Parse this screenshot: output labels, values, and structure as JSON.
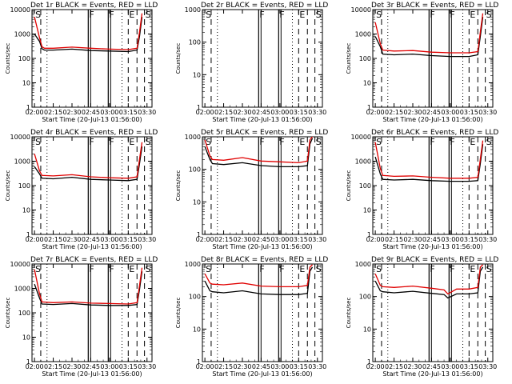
{
  "page": {
    "x_axis_label": "Start Time (20-Jul-13 01:56:00)",
    "y_axis_label": "Counts/sec"
  },
  "chart_data": [
    {
      "type": "line",
      "title": "Det 1r BLACK = Events, RED = LLD",
      "ylim": [
        1,
        10000
      ],
      "yscale": "log",
      "xlim": [
        "01:58",
        "03:34"
      ],
      "x_ticks": [
        "02:00",
        "02:15",
        "02:30",
        "02:45",
        "03:00",
        "03:15",
        "03:30"
      ],
      "y_ticks": [
        "1",
        "10",
        "100",
        "1000",
        "10000"
      ],
      "markers": [
        {
          "label": "S",
          "time": "02:00"
        },
        {
          "label": "F",
          "time": "02:43"
        },
        {
          "label": "F",
          "time": "02:59"
        },
        {
          "label": "E",
          "time": "03:15"
        },
        {
          "label": "S",
          "time": "03:28"
        }
      ],
      "series": [
        {
          "name": "Events",
          "color": "#000000",
          "x": [
            "02:00",
            "02:04",
            "02:06",
            "02:08",
            "02:15",
            "02:30",
            "02:45",
            "03:00",
            "03:15",
            "03:22",
            "03:24",
            "03:26"
          ],
          "values": [
            1000,
            500,
            250,
            220,
            220,
            240,
            210,
            200,
            190,
            220,
            800,
            5000
          ]
        },
        {
          "name": "LLD",
          "color": "#e00000",
          "x": [
            "02:00",
            "02:04",
            "02:06",
            "02:08",
            "02:15",
            "02:30",
            "02:45",
            "03:00",
            "03:15",
            "03:22",
            "03:24",
            "03:26"
          ],
          "values": [
            5000,
            700,
            300,
            260,
            260,
            290,
            260,
            240,
            230,
            260,
            1200,
            7000
          ]
        }
      ]
    },
    {
      "type": "line",
      "title": "Det 2r BLACK = Events, RED = LLD",
      "ylim": [
        1,
        1000
      ],
      "yscale": "log",
      "xlim": [
        "01:58",
        "03:34"
      ],
      "x_ticks": [
        "02:00",
        "02:15",
        "02:30",
        "02:45",
        "03:00",
        "03:15",
        "03:30"
      ],
      "y_ticks": [
        "1",
        "10",
        "100",
        "1000"
      ],
      "markers": [
        {
          "label": "S",
          "time": "02:00"
        },
        {
          "label": "F",
          "time": "02:43"
        },
        {
          "label": "F",
          "time": "02:59"
        },
        {
          "label": "E",
          "time": "03:15"
        },
        {
          "label": "S",
          "time": "03:28"
        }
      ],
      "series": []
    },
    {
      "type": "line",
      "title": "Det 3r BLACK = Events, RED = LLD",
      "ylim": [
        1,
        10000
      ],
      "yscale": "log",
      "xlim": [
        "01:58",
        "03:34"
      ],
      "x_ticks": [
        "02:00",
        "02:15",
        "02:30",
        "02:45",
        "03:00",
        "03:15",
        "03:30"
      ],
      "y_ticks": [
        "1",
        "10",
        "100",
        "1000",
        "10000"
      ],
      "markers": [
        {
          "label": "S",
          "time": "02:00"
        },
        {
          "label": "F",
          "time": "02:43"
        },
        {
          "label": "F",
          "time": "02:59"
        },
        {
          "label": "E",
          "time": "03:15"
        },
        {
          "label": "S",
          "time": "03:28"
        }
      ],
      "series": [
        {
          "name": "Events",
          "color": "#000000",
          "x": [
            "02:00",
            "02:04",
            "02:06",
            "02:15",
            "02:30",
            "02:45",
            "03:00",
            "03:15",
            "03:22",
            "03:24",
            "03:26"
          ],
          "values": [
            800,
            300,
            150,
            140,
            150,
            130,
            120,
            120,
            140,
            800,
            5000
          ]
        },
        {
          "name": "LLD",
          "color": "#e00000",
          "x": [
            "02:00",
            "02:04",
            "02:06",
            "02:15",
            "02:30",
            "02:45",
            "03:00",
            "03:15",
            "03:22",
            "03:24",
            "03:26"
          ],
          "values": [
            3000,
            400,
            220,
            200,
            210,
            180,
            170,
            170,
            190,
            1200,
            7000
          ]
        }
      ]
    },
    {
      "type": "line",
      "title": "Det 4r BLACK = Events, RED = LLD",
      "ylim": [
        1,
        10000
      ],
      "yscale": "log",
      "xlim": [
        "01:58",
        "03:34"
      ],
      "x_ticks": [
        "02:00",
        "02:15",
        "02:30",
        "02:45",
        "03:00",
        "03:15",
        "03:30"
      ],
      "y_ticks": [
        "1",
        "10",
        "100",
        "1000",
        "10000"
      ],
      "markers": [
        {
          "label": "S",
          "time": "02:00"
        },
        {
          "label": "F",
          "time": "02:43"
        },
        {
          "label": "F",
          "time": "02:59"
        },
        {
          "label": "E",
          "time": "03:15"
        },
        {
          "label": "S",
          "time": "03:28"
        }
      ],
      "series": [
        {
          "name": "Events",
          "color": "#000000",
          "x": [
            "02:00",
            "02:04",
            "02:06",
            "02:15",
            "02:30",
            "02:45",
            "03:00",
            "03:15",
            "03:22",
            "03:24",
            "03:26"
          ],
          "values": [
            600,
            300,
            200,
            190,
            220,
            180,
            170,
            160,
            180,
            800,
            4000
          ]
        },
        {
          "name": "LLD",
          "color": "#e00000",
          "x": [
            "02:00",
            "02:04",
            "02:06",
            "02:15",
            "02:30",
            "02:45",
            "03:00",
            "03:15",
            "03:22",
            "03:24",
            "03:26"
          ],
          "values": [
            2000,
            400,
            260,
            250,
            280,
            230,
            210,
            200,
            230,
            1200,
            6000
          ]
        }
      ]
    },
    {
      "type": "line",
      "title": "Det 5r BLACK = Events, RED = LLD",
      "ylim": [
        1,
        1000
      ],
      "yscale": "log",
      "xlim": [
        "01:58",
        "03:34"
      ],
      "x_ticks": [
        "02:00",
        "02:15",
        "02:30",
        "02:45",
        "03:00",
        "03:15",
        "03:30"
      ],
      "y_ticks": [
        "1",
        "10",
        "100",
        "1000"
      ],
      "markers": [
        {
          "label": "S",
          "time": "02:00"
        },
        {
          "label": "F",
          "time": "02:43"
        },
        {
          "label": "F",
          "time": "02:59"
        },
        {
          "label": "E",
          "time": "03:15"
        },
        {
          "label": "S",
          "time": "03:28"
        }
      ],
      "series": [
        {
          "name": "Events",
          "color": "#000000",
          "x": [
            "02:00",
            "02:04",
            "02:06",
            "02:15",
            "02:30",
            "02:45",
            "03:00",
            "03:15",
            "03:22",
            "03:24",
            "03:26"
          ],
          "values": [
            500,
            200,
            150,
            140,
            160,
            130,
            120,
            120,
            130,
            600,
            900
          ]
        },
        {
          "name": "LLD",
          "color": "#e00000",
          "x": [
            "02:00",
            "02:04",
            "02:06",
            "02:15",
            "02:30",
            "02:45",
            "03:00",
            "03:15",
            "03:22",
            "03:24",
            "03:26"
          ],
          "values": [
            800,
            260,
            200,
            190,
            230,
            180,
            170,
            160,
            180,
            800,
            1000
          ]
        }
      ]
    },
    {
      "type": "line",
      "title": "Det 6r BLACK = Events, RED = LLD",
      "ylim": [
        1,
        10000
      ],
      "yscale": "log",
      "xlim": [
        "01:58",
        "03:34"
      ],
      "x_ticks": [
        "02:00",
        "02:15",
        "02:30",
        "02:45",
        "03:00",
        "03:15",
        "03:30"
      ],
      "y_ticks": [
        "1",
        "10",
        "100",
        "1000",
        "10000"
      ],
      "markers": [
        {
          "label": "S",
          "time": "02:00"
        },
        {
          "label": "F",
          "time": "02:43"
        },
        {
          "label": "F",
          "time": "02:59"
        },
        {
          "label": "E",
          "time": "03:15"
        },
        {
          "label": "S",
          "time": "03:28"
        }
      ],
      "series": [
        {
          "name": "Events",
          "color": "#000000",
          "x": [
            "02:00",
            "02:04",
            "02:06",
            "02:15",
            "02:30",
            "02:45",
            "03:00",
            "03:15",
            "03:22",
            "03:24",
            "03:26"
          ],
          "values": [
            1500,
            300,
            180,
            170,
            180,
            160,
            150,
            150,
            160,
            800,
            5000
          ]
        },
        {
          "name": "LLD",
          "color": "#e00000",
          "x": [
            "02:00",
            "02:04",
            "02:06",
            "02:15",
            "02:30",
            "02:45",
            "03:00",
            "03:15",
            "03:22",
            "03:24",
            "03:26"
          ],
          "values": [
            6000,
            500,
            260,
            240,
            250,
            220,
            200,
            200,
            220,
            1200,
            7000
          ]
        }
      ]
    },
    {
      "type": "line",
      "title": "Det 7r BLACK = Events, RED = LLD",
      "ylim": [
        1,
        10000
      ],
      "yscale": "log",
      "xlim": [
        "01:58",
        "03:34"
      ],
      "x_ticks": [
        "02:00",
        "02:15",
        "02:30",
        "02:45",
        "03:00",
        "03:15",
        "03:30"
      ],
      "y_ticks": [
        "1",
        "10",
        "100",
        "1000",
        "10000"
      ],
      "markers": [
        {
          "label": "S",
          "time": "02:00"
        },
        {
          "label": "F",
          "time": "02:43"
        },
        {
          "label": "F",
          "time": "02:59"
        },
        {
          "label": "E",
          "time": "03:15"
        },
        {
          "label": "S",
          "time": "03:28"
        }
      ],
      "series": [
        {
          "name": "Events",
          "color": "#000000",
          "x": [
            "02:00",
            "02:04",
            "02:06",
            "02:15",
            "02:30",
            "02:45",
            "03:00",
            "03:15",
            "03:22",
            "03:24",
            "03:26"
          ],
          "values": [
            1500,
            400,
            230,
            220,
            240,
            210,
            200,
            200,
            220,
            900,
            5000
          ]
        },
        {
          "name": "LLD",
          "color": "#e00000",
          "x": [
            "02:00",
            "02:04",
            "02:06",
            "02:15",
            "02:30",
            "02:45",
            "03:00",
            "03:15",
            "03:22",
            "03:24",
            "03:26"
          ],
          "values": [
            6000,
            600,
            280,
            260,
            280,
            250,
            240,
            230,
            260,
            1300,
            7000
          ]
        }
      ]
    },
    {
      "type": "line",
      "title": "Det 8r BLACK = Events, RED = LLD",
      "ylim": [
        1,
        1000
      ],
      "yscale": "log",
      "xlim": [
        "01:58",
        "03:34"
      ],
      "x_ticks": [
        "02:00",
        "02:15",
        "02:30",
        "02:45",
        "03:00",
        "03:15",
        "03:30"
      ],
      "y_ticks": [
        "1",
        "10",
        "100",
        "1000"
      ],
      "markers": [
        {
          "label": "S",
          "time": "02:00"
        },
        {
          "label": "F",
          "time": "02:43"
        },
        {
          "label": "F",
          "time": "02:59"
        },
        {
          "label": "E",
          "time": "03:15"
        },
        {
          "label": "S",
          "time": "03:28"
        }
      ],
      "series": [
        {
          "name": "Events",
          "color": "#000000",
          "x": [
            "02:00",
            "02:04",
            "02:06",
            "02:15",
            "02:30",
            "02:45",
            "03:00",
            "03:15",
            "03:22",
            "03:24",
            "03:26"
          ],
          "values": [
            300,
            150,
            140,
            130,
            150,
            120,
            115,
            115,
            125,
            600,
            800
          ]
        },
        {
          "name": "LLD",
          "color": "#e00000",
          "x": [
            "02:00",
            "02:04",
            "02:06",
            "02:15",
            "02:30",
            "02:45",
            "03:00",
            "03:15",
            "03:22",
            "03:24",
            "03:26"
          ],
          "values": [
            500,
            260,
            240,
            230,
            260,
            210,
            200,
            200,
            220,
            800,
            950
          ]
        }
      ]
    },
    {
      "type": "line",
      "title": "Det 9r BLACK = Events, RED = LLD",
      "ylim": [
        1,
        1000
      ],
      "yscale": "log",
      "xlim": [
        "01:58",
        "03:34"
      ],
      "x_ticks": [
        "02:00",
        "02:15",
        "02:30",
        "02:45",
        "03:00",
        "03:15",
        "03:30"
      ],
      "y_ticks": [
        "1",
        "10",
        "100",
        "1000"
      ],
      "markers": [
        {
          "label": "S",
          "time": "02:00"
        },
        {
          "label": "F",
          "time": "02:43"
        },
        {
          "label": "F",
          "time": "02:59"
        },
        {
          "label": "E",
          "time": "03:15"
        },
        {
          "label": "S",
          "time": "03:28"
        }
      ],
      "series": [
        {
          "name": "Events",
          "color": "#000000",
          "x": [
            "02:00",
            "02:04",
            "02:06",
            "02:15",
            "02:30",
            "02:45",
            "02:55",
            "02:58",
            "03:05",
            "03:15",
            "03:22",
            "03:24",
            "03:26"
          ],
          "values": [
            300,
            150,
            140,
            130,
            145,
            125,
            115,
            90,
            120,
            120,
            130,
            600,
            800
          ]
        },
        {
          "name": "LLD",
          "color": "#e00000",
          "x": [
            "02:00",
            "02:04",
            "02:06",
            "02:15",
            "02:30",
            "02:45",
            "02:55",
            "02:58",
            "03:05",
            "03:15",
            "03:22",
            "03:24",
            "03:26"
          ],
          "values": [
            500,
            220,
            200,
            190,
            210,
            180,
            160,
            120,
            170,
            170,
            190,
            800,
            950
          ]
        }
      ]
    }
  ]
}
